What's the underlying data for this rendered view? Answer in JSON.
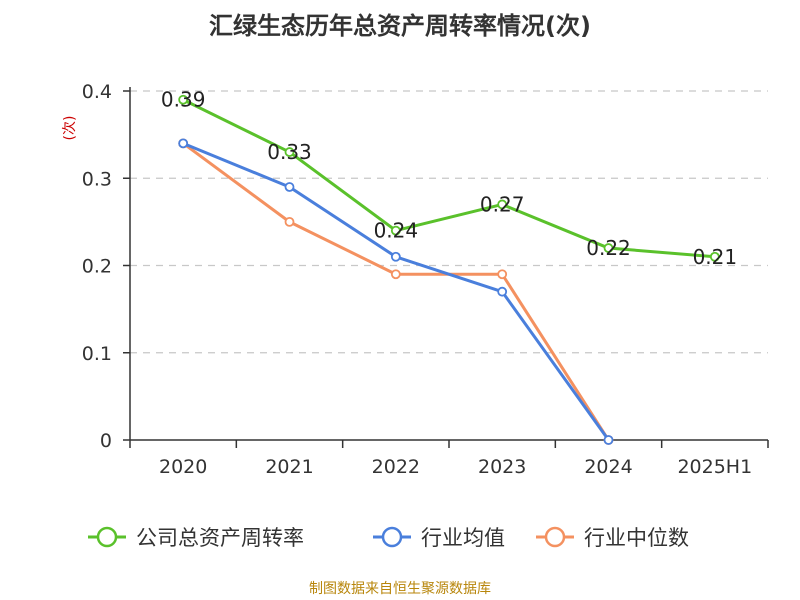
{
  "chart_data": {
    "type": "line",
    "title": "汇绿生态历年总资产周转率情况(次)",
    "ylabel": "(次)",
    "ylim": [
      0,
      0.4
    ],
    "yticks": [
      0,
      0.1,
      0.2,
      0.3,
      0.4
    ],
    "ytick_labels": [
      "0",
      "0.1",
      "0.2",
      "0.3",
      "0.4"
    ],
    "categories": [
      "2020",
      "2021",
      "2022",
      "2023",
      "2024",
      "2025H1"
    ],
    "grid": true,
    "legend_position": "bottom",
    "series": [
      {
        "name": "公司总资产周转率",
        "color": "#5ac12b",
        "values": [
          0.39,
          0.33,
          0.24,
          0.27,
          0.22,
          0.21
        ],
        "labels": [
          "0.39",
          "0.33",
          "0.24",
          "0.27",
          "0.22",
          "0.21"
        ]
      },
      {
        "name": "行业均值",
        "color": "#4a7fdc",
        "values": [
          0.34,
          0.29,
          0.21,
          0.17,
          0.0,
          null
        ]
      },
      {
        "name": "行业中位数",
        "color": "#f49160",
        "values": [
          0.34,
          0.25,
          0.19,
          0.19,
          0.0,
          null
        ]
      }
    ]
  },
  "source": "制图数据来自恒生聚源数据库"
}
